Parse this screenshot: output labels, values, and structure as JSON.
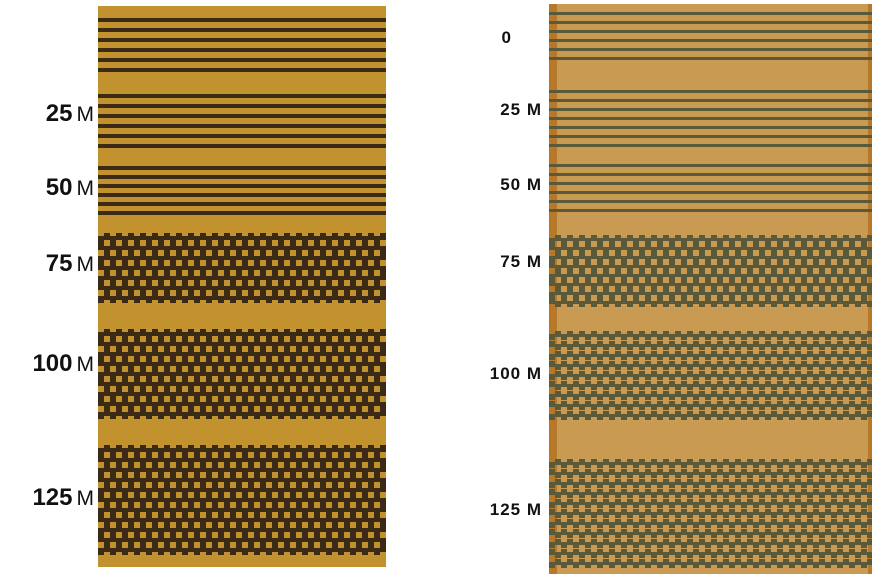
{
  "left_panel": {
    "labels": [
      {
        "value": "25",
        "unit": "M"
      },
      {
        "value": "50",
        "unit": "M"
      },
      {
        "value": "75",
        "unit": "M"
      },
      {
        "value": "100",
        "unit": "M"
      },
      {
        "value": "125",
        "unit": "M"
      }
    ]
  },
  "right_panel": {
    "labels": [
      {
        "text": "0"
      },
      {
        "text": "25 M"
      },
      {
        "text": "50 M"
      },
      {
        "text": "75 M"
      },
      {
        "text": "100 M"
      },
      {
        "text": "125 M"
      }
    ]
  },
  "colors": {
    "left_background": "#c2922f",
    "left_line": "#3a2a16",
    "right_background": "#c89a52",
    "right_line": "#5a5a3a",
    "right_border": "#b8782a"
  }
}
